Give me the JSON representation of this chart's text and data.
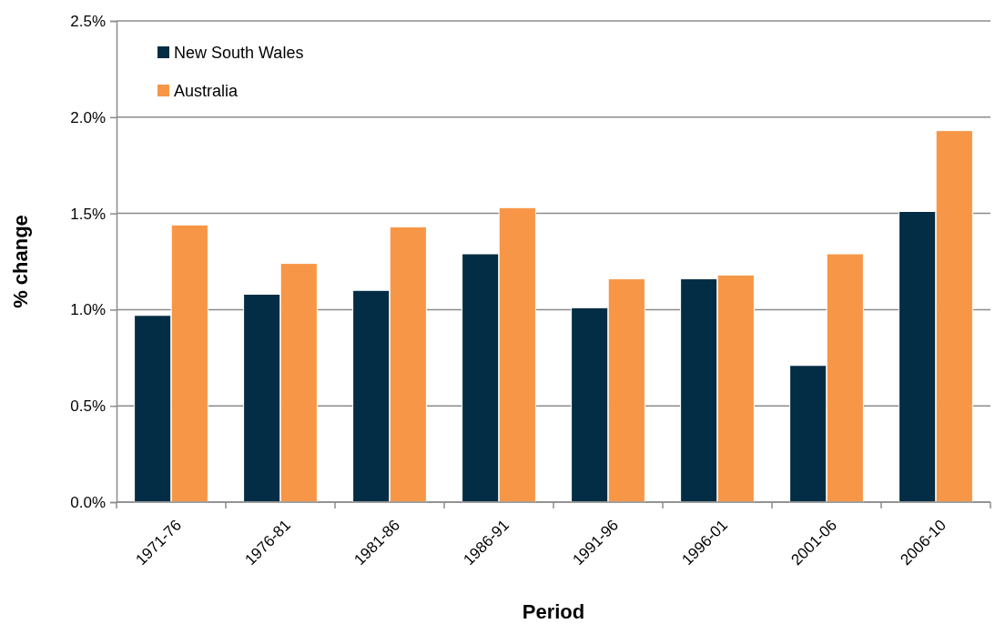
{
  "chart_data": {
    "type": "bar",
    "xlabel": "Period",
    "ylabel": "% change",
    "categories": [
      "1971-76",
      "1976-81",
      "1981-86",
      "1986-91",
      "1991-96",
      "1996-01",
      "2001-06",
      "2006-10"
    ],
    "series": [
      {
        "name": "New South Wales",
        "color": "#032d44",
        "values": [
          0.97,
          1.08,
          1.1,
          1.29,
          1.01,
          1.16,
          0.71,
          1.51
        ]
      },
      {
        "name": "Australia",
        "color": "#f79646",
        "values": [
          1.44,
          1.24,
          1.43,
          1.53,
          1.16,
          1.18,
          1.29,
          1.93
        ]
      }
    ],
    "ylim": [
      0,
      2.5
    ],
    "yticks": [
      {
        "value": 0,
        "label": "0.0%"
      },
      {
        "value": 0.5,
        "label": "0.5%"
      },
      {
        "value": 1,
        "label": "1.0%"
      },
      {
        "value": 1.5,
        "label": "1.5%"
      },
      {
        "value": 2,
        "label": "2.0%"
      },
      {
        "value": 2.5,
        "label": "2.5%"
      }
    ],
    "grid": "y",
    "legend": "top left"
  }
}
